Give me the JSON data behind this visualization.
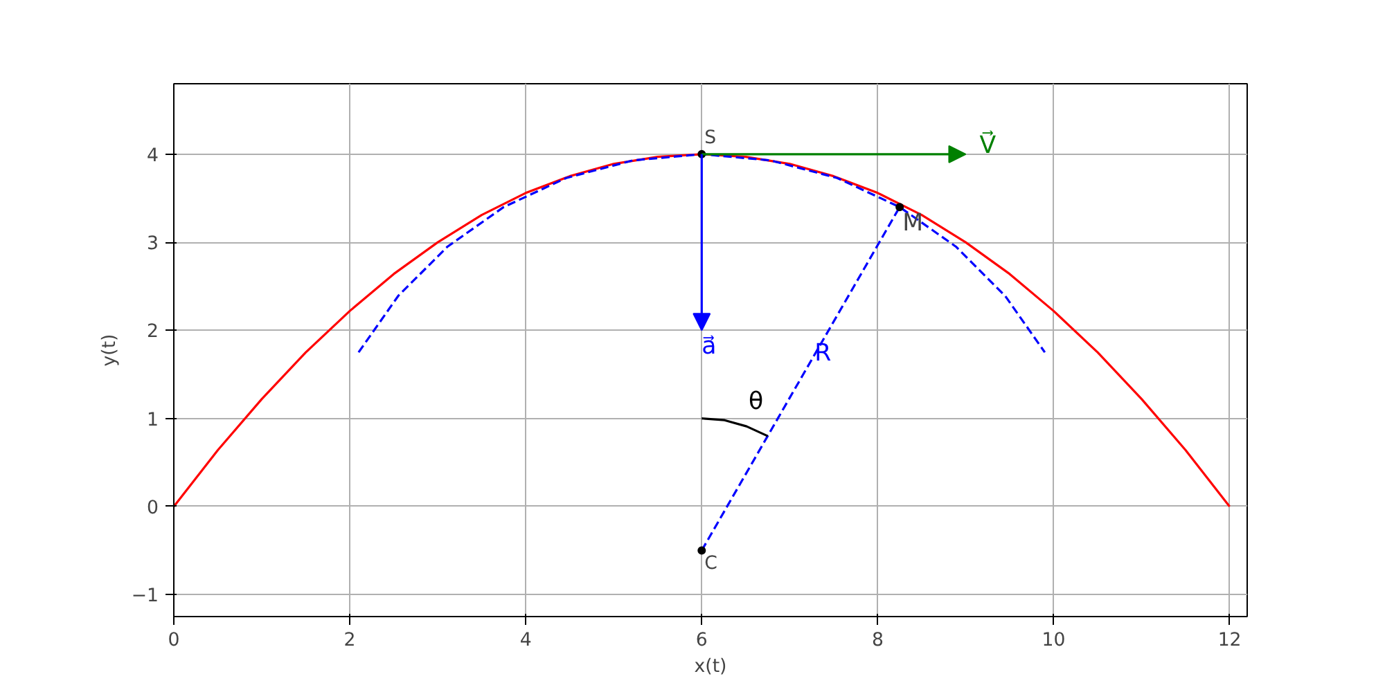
{
  "chart_data": {
    "type": "line",
    "xlabel": "x(t)",
    "ylabel": "y(t)",
    "xlim": [
      0,
      12.2
    ],
    "ylim": [
      -1.25,
      4.8
    ],
    "xticks": [
      0,
      2,
      4,
      6,
      8,
      10,
      12
    ],
    "yticks": [
      {
        "value": -1,
        "label": "−1"
      },
      0,
      1,
      2,
      3,
      4
    ],
    "grid": true,
    "series": [
      {
        "color": "#ff0000",
        "line_style": "solid",
        "x": [
          0,
          0.5,
          1,
          1.5,
          2,
          2.5,
          3,
          3.5,
          4,
          4.5,
          5,
          5.5,
          6,
          6.5,
          7,
          7.5,
          8,
          8.5,
          9,
          9.5,
          10,
          10.5,
          11,
          11.5,
          12
        ],
        "values": [
          0,
          0.64,
          1.22,
          1.75,
          2.22,
          2.64,
          3,
          3.31,
          3.56,
          3.75,
          3.89,
          3.97,
          4,
          3.97,
          3.89,
          3.75,
          3.56,
          3.31,
          3,
          2.64,
          2.22,
          1.75,
          1.22,
          0.64,
          0
        ]
      },
      {
        "color": "#0000ff",
        "line_style": "dashed",
        "x": [
          2.1,
          2.55,
          3.11,
          3.75,
          4.46,
          5.22,
          6,
          6.78,
          7.54,
          8.25,
          8.89,
          9.45,
          9.9
        ],
        "values": [
          1.75,
          2.39,
          2.95,
          3.4,
          3.73,
          3.93,
          4,
          3.93,
          3.73,
          3.4,
          2.95,
          2.39,
          1.75
        ]
      },
      {
        "name": "R",
        "color": "#0000ff",
        "line_style": "dashed",
        "x": [
          6,
          8.25
        ],
        "values": [
          -0.5,
          3.4
        ]
      },
      {
        "name": "θ",
        "color": "#000000",
        "line_style": "solid",
        "x": [
          6,
          6.26,
          6.51,
          6.75
        ],
        "values": [
          1,
          0.98,
          0.91,
          0.8
        ]
      },
      {
        "type": "scatter",
        "color": "#000000",
        "marker": "circle",
        "x": [
          6,
          6,
          8.25
        ],
        "values": [
          4,
          -0.5,
          3.4
        ]
      }
    ],
    "annotations": [
      "S",
      "C",
      "M",
      "V⃗",
      "a⃗"
    ]
  }
}
